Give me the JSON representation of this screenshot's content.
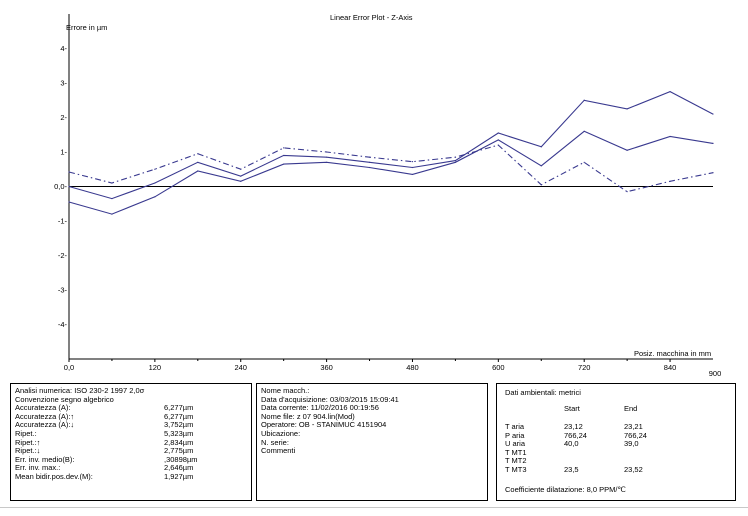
{
  "chart_data": {
    "type": "line",
    "title": "Linear Error Plot - Z-Axis",
    "ylabel": "Errore in µm",
    "xlabel": "Posiz. macchina in mm",
    "xlim": [
      0,
      900
    ],
    "ylim": [
      -5,
      5
    ],
    "xticks": [
      "0,0",
      "120",
      "240",
      "360",
      "480",
      "600",
      "720",
      "840",
      "900"
    ],
    "yticks": [
      "4-",
      "3-",
      "2-",
      "1-",
      "0,0-",
      "-1-",
      "-2-",
      "-3-",
      "-4-"
    ],
    "x": [
      0,
      60,
      120,
      180,
      240,
      300,
      360,
      420,
      480,
      540,
      600,
      660,
      720,
      780,
      840,
      900
    ],
    "series": [
      {
        "style": "solid",
        "values": [
          -0.45,
          -0.8,
          -0.3,
          0.45,
          0.15,
          0.65,
          0.7,
          0.55,
          0.35,
          0.7,
          1.35,
          0.6,
          1.6,
          1.05,
          1.45,
          1.25
        ]
      },
      {
        "style": "solid",
        "values": [
          0.0,
          -0.35,
          0.1,
          0.7,
          0.3,
          0.9,
          0.85,
          0.7,
          0.55,
          0.75,
          1.55,
          1.15,
          2.5,
          2.25,
          2.75,
          2.1
        ]
      },
      {
        "style": "dash-dot",
        "values": [
          0.42,
          0.1,
          0.5,
          0.95,
          0.5,
          1.12,
          1.0,
          0.85,
          0.72,
          0.85,
          1.2,
          0.05,
          0.7,
          -0.15,
          0.15,
          0.4
        ]
      }
    ],
    "colors": {
      "series": "#39398f",
      "axis": "#000000"
    },
    "grid": false
  },
  "analysis": {
    "header1": "Analisi numerica:  ISO 230-2 1997 2,0σ",
    "header2": "Convenzione segno algebrico",
    "rows": [
      {
        "label": "Accuratezza (A):",
        "value": "6,277µm"
      },
      {
        "label": "Accuratezza (A):↑",
        "value": "6,277µm"
      },
      {
        "label": "Accuratezza (A):↓",
        "value": "3,752µm"
      },
      {
        "label": "Ripet.:",
        "value": "5,323µm"
      },
      {
        "label": "Ripet.:↑",
        "value": "2,834µm"
      },
      {
        "label": "Ripet.:↓",
        "value": "2,775µm"
      },
      {
        "label": "Err. inv. medio(B):",
        "value": ",30898µm"
      },
      {
        "label": "Err. inv. max.:",
        "value": "2,646µm"
      },
      {
        "label": "Mean bidir.pos.dev.(M):",
        "value": "1,927µm"
      }
    ]
  },
  "machine": {
    "lines": [
      "Nome macch.:",
      "Data d'acquisizione: 03/03/2015 15:09:41",
      "Data corrente:  11/02/2016 00:19:56",
      "Nome file:  z 07 904.lin(Mod)",
      "Operatore:  OB - STANIMUC 4151904",
      "Ubicazione:",
      "N. serie:",
      "Commenti"
    ]
  },
  "environment": {
    "title": "Dati ambientali: metrici",
    "col_start": "Start",
    "col_end": "End",
    "rows": [
      {
        "label": "T aria",
        "start": "23,12",
        "end": "23,21"
      },
      {
        "label": "P aria",
        "start": "766,24",
        "end": "766,24"
      },
      {
        "label": "U aria",
        "start": "40,0",
        "end": "39,0"
      },
      {
        "label": "T MT1",
        "start": "",
        "end": ""
      },
      {
        "label": "T MT2",
        "start": "",
        "end": ""
      },
      {
        "label": "T MT3",
        "start": "23,5",
        "end": "23,52"
      }
    ],
    "coefficient": "Coefficiente dilatazione: 8,0 PPM/℃"
  }
}
